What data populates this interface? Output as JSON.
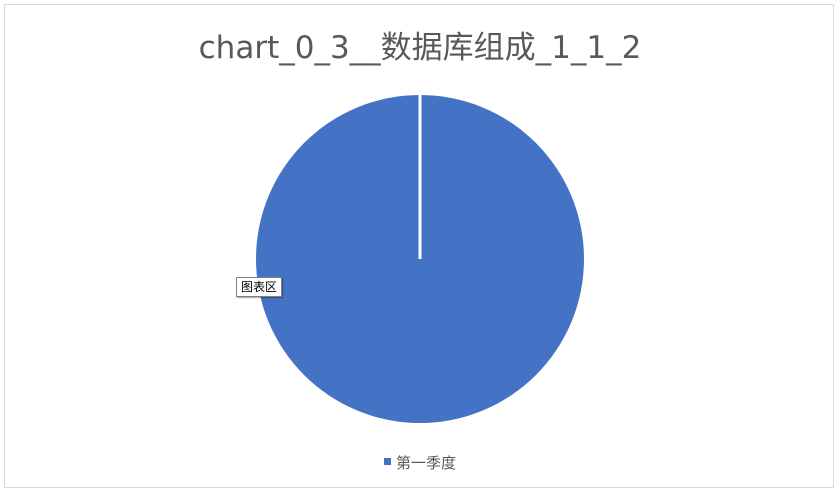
{
  "chart_data": {
    "type": "pie",
    "title": "chart_0_3__数据库组成_1_1_2",
    "categories": [
      "第一季度"
    ],
    "values": [
      100
    ],
    "colors": [
      "#4472c4"
    ],
    "legend_position": "bottom"
  },
  "tooltip": {
    "label": "图表区"
  },
  "legend": {
    "items": [
      {
        "label": "第一季度",
        "color": "#4472c4"
      }
    ]
  }
}
